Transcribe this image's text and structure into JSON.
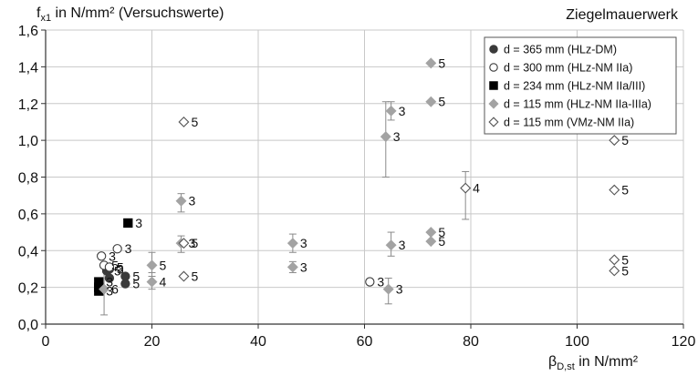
{
  "chart_data": {
    "type": "scatter",
    "title": "Ziegelmauerwerk",
    "ylabel": {
      "main": "f",
      "sub": "x1",
      "rest": " in N/mm² (Versuchswerte)"
    },
    "xlabel": {
      "main": "β",
      "sub": "D,st",
      "rest": " in N/mm²"
    },
    "xlim": [
      0,
      120
    ],
    "ylim": [
      0,
      1.6
    ],
    "xticks": [
      "0",
      "20",
      "40",
      "60",
      "80",
      "100",
      "120"
    ],
    "yticks": [
      "0,0",
      "0,2",
      "0,4",
      "0,6",
      "0,8",
      "1,0",
      "1,2",
      "1,4",
      "1,6"
    ],
    "grid": true,
    "legend_position": "top-right",
    "series": [
      {
        "name": "d = 365 mm (HLz-DM)",
        "marker": "circle",
        "filled": true,
        "color": "#3a3a3a",
        "points": [
          {
            "x": 11.5,
            "y": 0.29,
            "label": "5"
          },
          {
            "x": 12.0,
            "y": 0.3,
            "label": "3"
          },
          {
            "x": 12.0,
            "y": 0.25,
            "label": ""
          },
          {
            "x": 15.0,
            "y": 0.26,
            "label": "5"
          },
          {
            "x": 15.0,
            "y": 0.22,
            "label": "5"
          }
        ]
      },
      {
        "name": "d = 300 mm (HLz-NM IIa)",
        "marker": "circle",
        "filled": false,
        "color": "#3a3a3a",
        "points": [
          {
            "x": 10.5,
            "y": 0.37,
            "label": "3"
          },
          {
            "x": 13.5,
            "y": 0.41,
            "label": "3"
          },
          {
            "x": 11.0,
            "y": 0.32,
            "label": "5"
          },
          {
            "x": 12.0,
            "y": 0.31,
            "label": "5"
          },
          {
            "x": 61.0,
            "y": 0.23,
            "label": "3"
          }
        ]
      },
      {
        "name": "d = 234 mm (HLz-NM IIa/III)",
        "marker": "square",
        "filled": true,
        "color": "#000000",
        "points": [
          {
            "x": 15.5,
            "y": 0.55,
            "label": "3"
          },
          {
            "x": 10.0,
            "y": 0.23,
            "label": "3"
          },
          {
            "x": 10.0,
            "y": 0.2,
            "label": ""
          },
          {
            "x": 10.0,
            "y": 0.18,
            "label": "3"
          }
        ]
      },
      {
        "name": "d = 115 mm (HLz-NM IIa-IIIa)",
        "marker": "diamond",
        "filled": true,
        "color": "#a3a3a3",
        "points": [
          {
            "x": 11.0,
            "y": 0.19,
            "label": "6",
            "err": [
              0.05,
              0.33
            ]
          },
          {
            "x": 20.0,
            "y": 0.32,
            "label": "5",
            "err": [
              0.26,
              0.39
            ]
          },
          {
            "x": 20.0,
            "y": 0.23,
            "label": "4",
            "err": [
              0.19,
              0.28
            ]
          },
          {
            "x": 25.5,
            "y": 0.67,
            "label": "3",
            "err": [
              0.61,
              0.71
            ]
          },
          {
            "x": 25.5,
            "y": 0.44,
            "label": "3",
            "err": [
              0.39,
              0.48
            ]
          },
          {
            "x": 46.5,
            "y": 0.44,
            "label": "3",
            "err": [
              0.39,
              0.49
            ]
          },
          {
            "x": 46.5,
            "y": 0.31,
            "label": "3",
            "err": [
              0.28,
              0.34
            ]
          },
          {
            "x": 64.0,
            "y": 1.02,
            "label": "3",
            "err": [
              0.8,
              1.21
            ]
          },
          {
            "x": 65.0,
            "y": 1.16,
            "label": "3",
            "err": [
              1.11,
              1.21
            ]
          },
          {
            "x": 65.0,
            "y": 0.43,
            "label": "3",
            "err": [
              0.37,
              0.5
            ]
          },
          {
            "x": 64.5,
            "y": 0.19,
            "label": "3",
            "err": [
              0.11,
              0.25
            ]
          },
          {
            "x": 72.5,
            "y": 1.42,
            "label": "5"
          },
          {
            "x": 72.5,
            "y": 1.21,
            "label": "5"
          },
          {
            "x": 72.5,
            "y": 0.5,
            "label": "5"
          },
          {
            "x": 72.5,
            "y": 0.45,
            "label": "5"
          }
        ]
      },
      {
        "name": "d = 115 mm (VMz-NM IIa)",
        "marker": "diamond",
        "filled": false,
        "color": "#555555",
        "points": [
          {
            "x": 26.0,
            "y": 1.1,
            "label": "5"
          },
          {
            "x": 26.0,
            "y": 0.44,
            "label": "5"
          },
          {
            "x": 26.0,
            "y": 0.26,
            "label": "5"
          },
          {
            "x": 79.0,
            "y": 0.74,
            "label": "4",
            "err": [
              0.57,
              0.83
            ]
          },
          {
            "x": 107.0,
            "y": 1.0,
            "label": "5"
          },
          {
            "x": 107.0,
            "y": 0.73,
            "label": "5"
          },
          {
            "x": 107.0,
            "y": 0.35,
            "label": "5"
          },
          {
            "x": 107.0,
            "y": 0.29,
            "label": "5"
          }
        ]
      }
    ]
  }
}
